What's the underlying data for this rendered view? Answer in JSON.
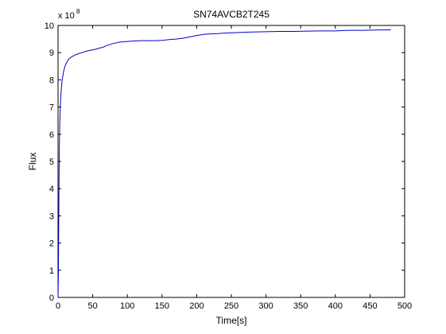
{
  "chart_data": {
    "type": "line",
    "title": "SN74AVCB2T245",
    "xlabel": "Time[s]",
    "ylabel": "Flux",
    "y_multiplier_label": "x 10",
    "y_multiplier_exponent": "8",
    "xlim": [
      0,
      500
    ],
    "ylim": [
      0,
      10
    ],
    "y_scale_factor": 100000000,
    "grid": false,
    "legend": "none",
    "x_ticks": [
      "0",
      "50",
      "100",
      "150",
      "200",
      "250",
      "300",
      "350",
      "400",
      "450",
      "500"
    ],
    "y_ticks": [
      "0",
      "1",
      "2",
      "3",
      "4",
      "5",
      "6",
      "7",
      "8",
      "9",
      "10"
    ],
    "series": [
      {
        "color": "#0000cc",
        "x": [
          0,
          0.5,
          1,
          1.5,
          2,
          2.5,
          3,
          4,
          5,
          6,
          8,
          10,
          12,
          15,
          18,
          20,
          25,
          30,
          35,
          40,
          45,
          50,
          55,
          60,
          65,
          70,
          75,
          80,
          90,
          100,
          110,
          120,
          130,
          140,
          150,
          160,
          170,
          180,
          190,
          200,
          210,
          220,
          230,
          240,
          250,
          260,
          270,
          280,
          300,
          320,
          340,
          360,
          380,
          400,
          420,
          440,
          460,
          480
        ],
        "y": [
          0,
          0.9,
          2.7,
          4.5,
          5.7,
          6.4,
          6.9,
          7.4,
          7.75,
          8.0,
          8.3,
          8.5,
          8.62,
          8.75,
          8.82,
          8.85,
          8.92,
          8.97,
          9.0,
          9.05,
          9.08,
          9.1,
          9.13,
          9.17,
          9.2,
          9.26,
          9.3,
          9.34,
          9.39,
          9.41,
          9.43,
          9.44,
          9.44,
          9.44,
          9.45,
          9.48,
          9.5,
          9.53,
          9.58,
          9.63,
          9.67,
          9.69,
          9.7,
          9.72,
          9.73,
          9.74,
          9.75,
          9.76,
          9.77,
          9.78,
          9.78,
          9.79,
          9.8,
          9.8,
          9.82,
          9.82,
          9.83,
          9.84
        ]
      }
    ]
  }
}
